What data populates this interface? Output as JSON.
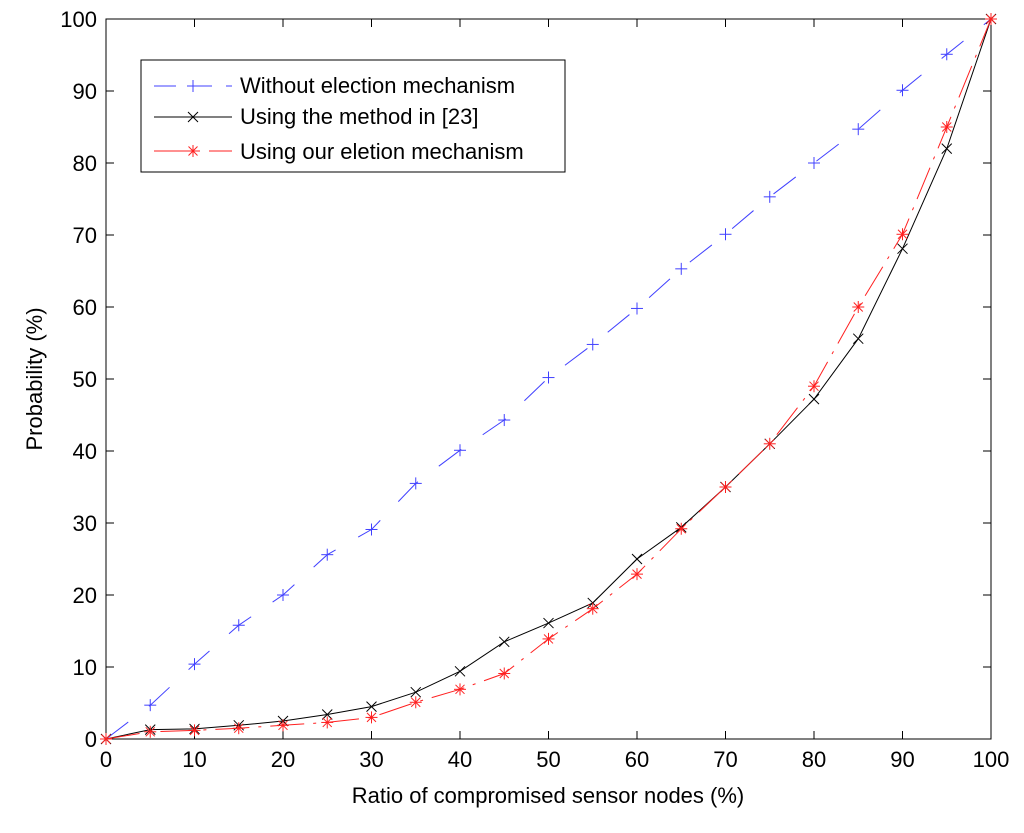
{
  "chart_data": {
    "type": "line",
    "title": "",
    "xlabel": "Ratio of compromised sensor nodes (%)",
    "ylabel": "Probability (%)",
    "xlim": [
      0,
      100
    ],
    "ylim": [
      0,
      100
    ],
    "xticks": [
      0,
      10,
      20,
      30,
      40,
      50,
      60,
      70,
      80,
      90,
      100
    ],
    "yticks": [
      0,
      10,
      20,
      30,
      40,
      50,
      60,
      70,
      80,
      90,
      100
    ],
    "grid": false,
    "legend_position": "top-left",
    "x": [
      0,
      5,
      10,
      15,
      20,
      25,
      30,
      35,
      40,
      45,
      50,
      55,
      60,
      65,
      70,
      75,
      80,
      85,
      90,
      95,
      100
    ],
    "series": [
      {
        "name": "Without election mechanism",
        "color": "#4040ff",
        "marker": "plus",
        "line_style": "dash",
        "values": [
          0,
          4.7,
          10.4,
          15.8,
          20.0,
          25.6,
          29.1,
          35.5,
          40.1,
          44.3,
          50.2,
          54.8,
          59.8,
          65.3,
          70.1,
          75.3,
          80.0,
          84.7,
          90.1,
          95.1,
          100
        ]
      },
      {
        "name": "Using the method in [23]",
        "color": "#000000",
        "marker": "x",
        "line_style": "solid",
        "values": [
          0,
          1.3,
          1.4,
          1.9,
          2.5,
          3.4,
          4.5,
          6.5,
          9.4,
          13.5,
          16.1,
          18.9,
          25.0,
          29.4,
          35.0,
          41.0,
          47.2,
          55.6,
          68.1,
          82.0,
          100
        ]
      },
      {
        "name": "Using our eletion mechanism",
        "color": "#ff2020",
        "marker": "asterisk",
        "line_style": "dashdot",
        "values": [
          0,
          1.0,
          1.2,
          1.5,
          1.9,
          2.3,
          3.0,
          5.1,
          6.9,
          9.1,
          13.9,
          18.1,
          22.9,
          29.2,
          35.0,
          41.0,
          49.0,
          60.0,
          70.1,
          85.0,
          100
        ]
      }
    ]
  }
}
